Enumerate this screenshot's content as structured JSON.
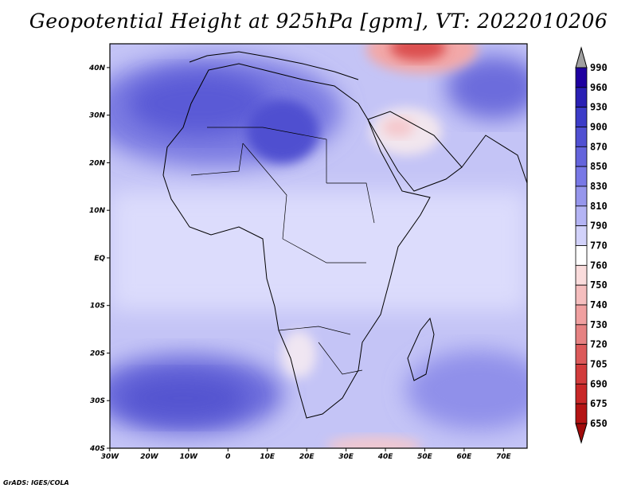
{
  "title": "Geopotential Height at 925hPa [gpm], VT: 2022010206",
  "credit": "GrADS: IGES/COLA",
  "map": {
    "lon_range": [
      -30,
      76
    ],
    "lat_range": [
      -40,
      45
    ],
    "x_ticks": [
      "30W",
      "20W",
      "10W",
      "0",
      "10E",
      "20E",
      "30E",
      "40E",
      "50E",
      "60E",
      "70E"
    ],
    "y_ticks": [
      "40N",
      "30N",
      "20N",
      "10N",
      "EQ",
      "10S",
      "20S",
      "30S",
      "40S"
    ]
  },
  "colorbar": {
    "labels": [
      "990",
      "960",
      "930",
      "900",
      "870",
      "850",
      "830",
      "810",
      "790",
      "770",
      "760",
      "750",
      "740",
      "730",
      "720",
      "705",
      "690",
      "675",
      "650"
    ],
    "colors": [
      "#a0a0a0",
      "#1e00a0",
      "#2a20b4",
      "#3c3cc8",
      "#5050d2",
      "#6464dc",
      "#7878e6",
      "#9696ec",
      "#b4b4f4",
      "#d2d2fa",
      "#ffffff",
      "#fadcdc",
      "#f5bebe",
      "#f0a0a0",
      "#e68282",
      "#dc5a5a",
      "#d23c3c",
      "#c82828",
      "#b41414",
      "#a00a0a"
    ]
  },
  "colors": {
    "background_field": "#c8c8f8",
    "low_field": "#f0dce6",
    "coast": "#000000"
  }
}
